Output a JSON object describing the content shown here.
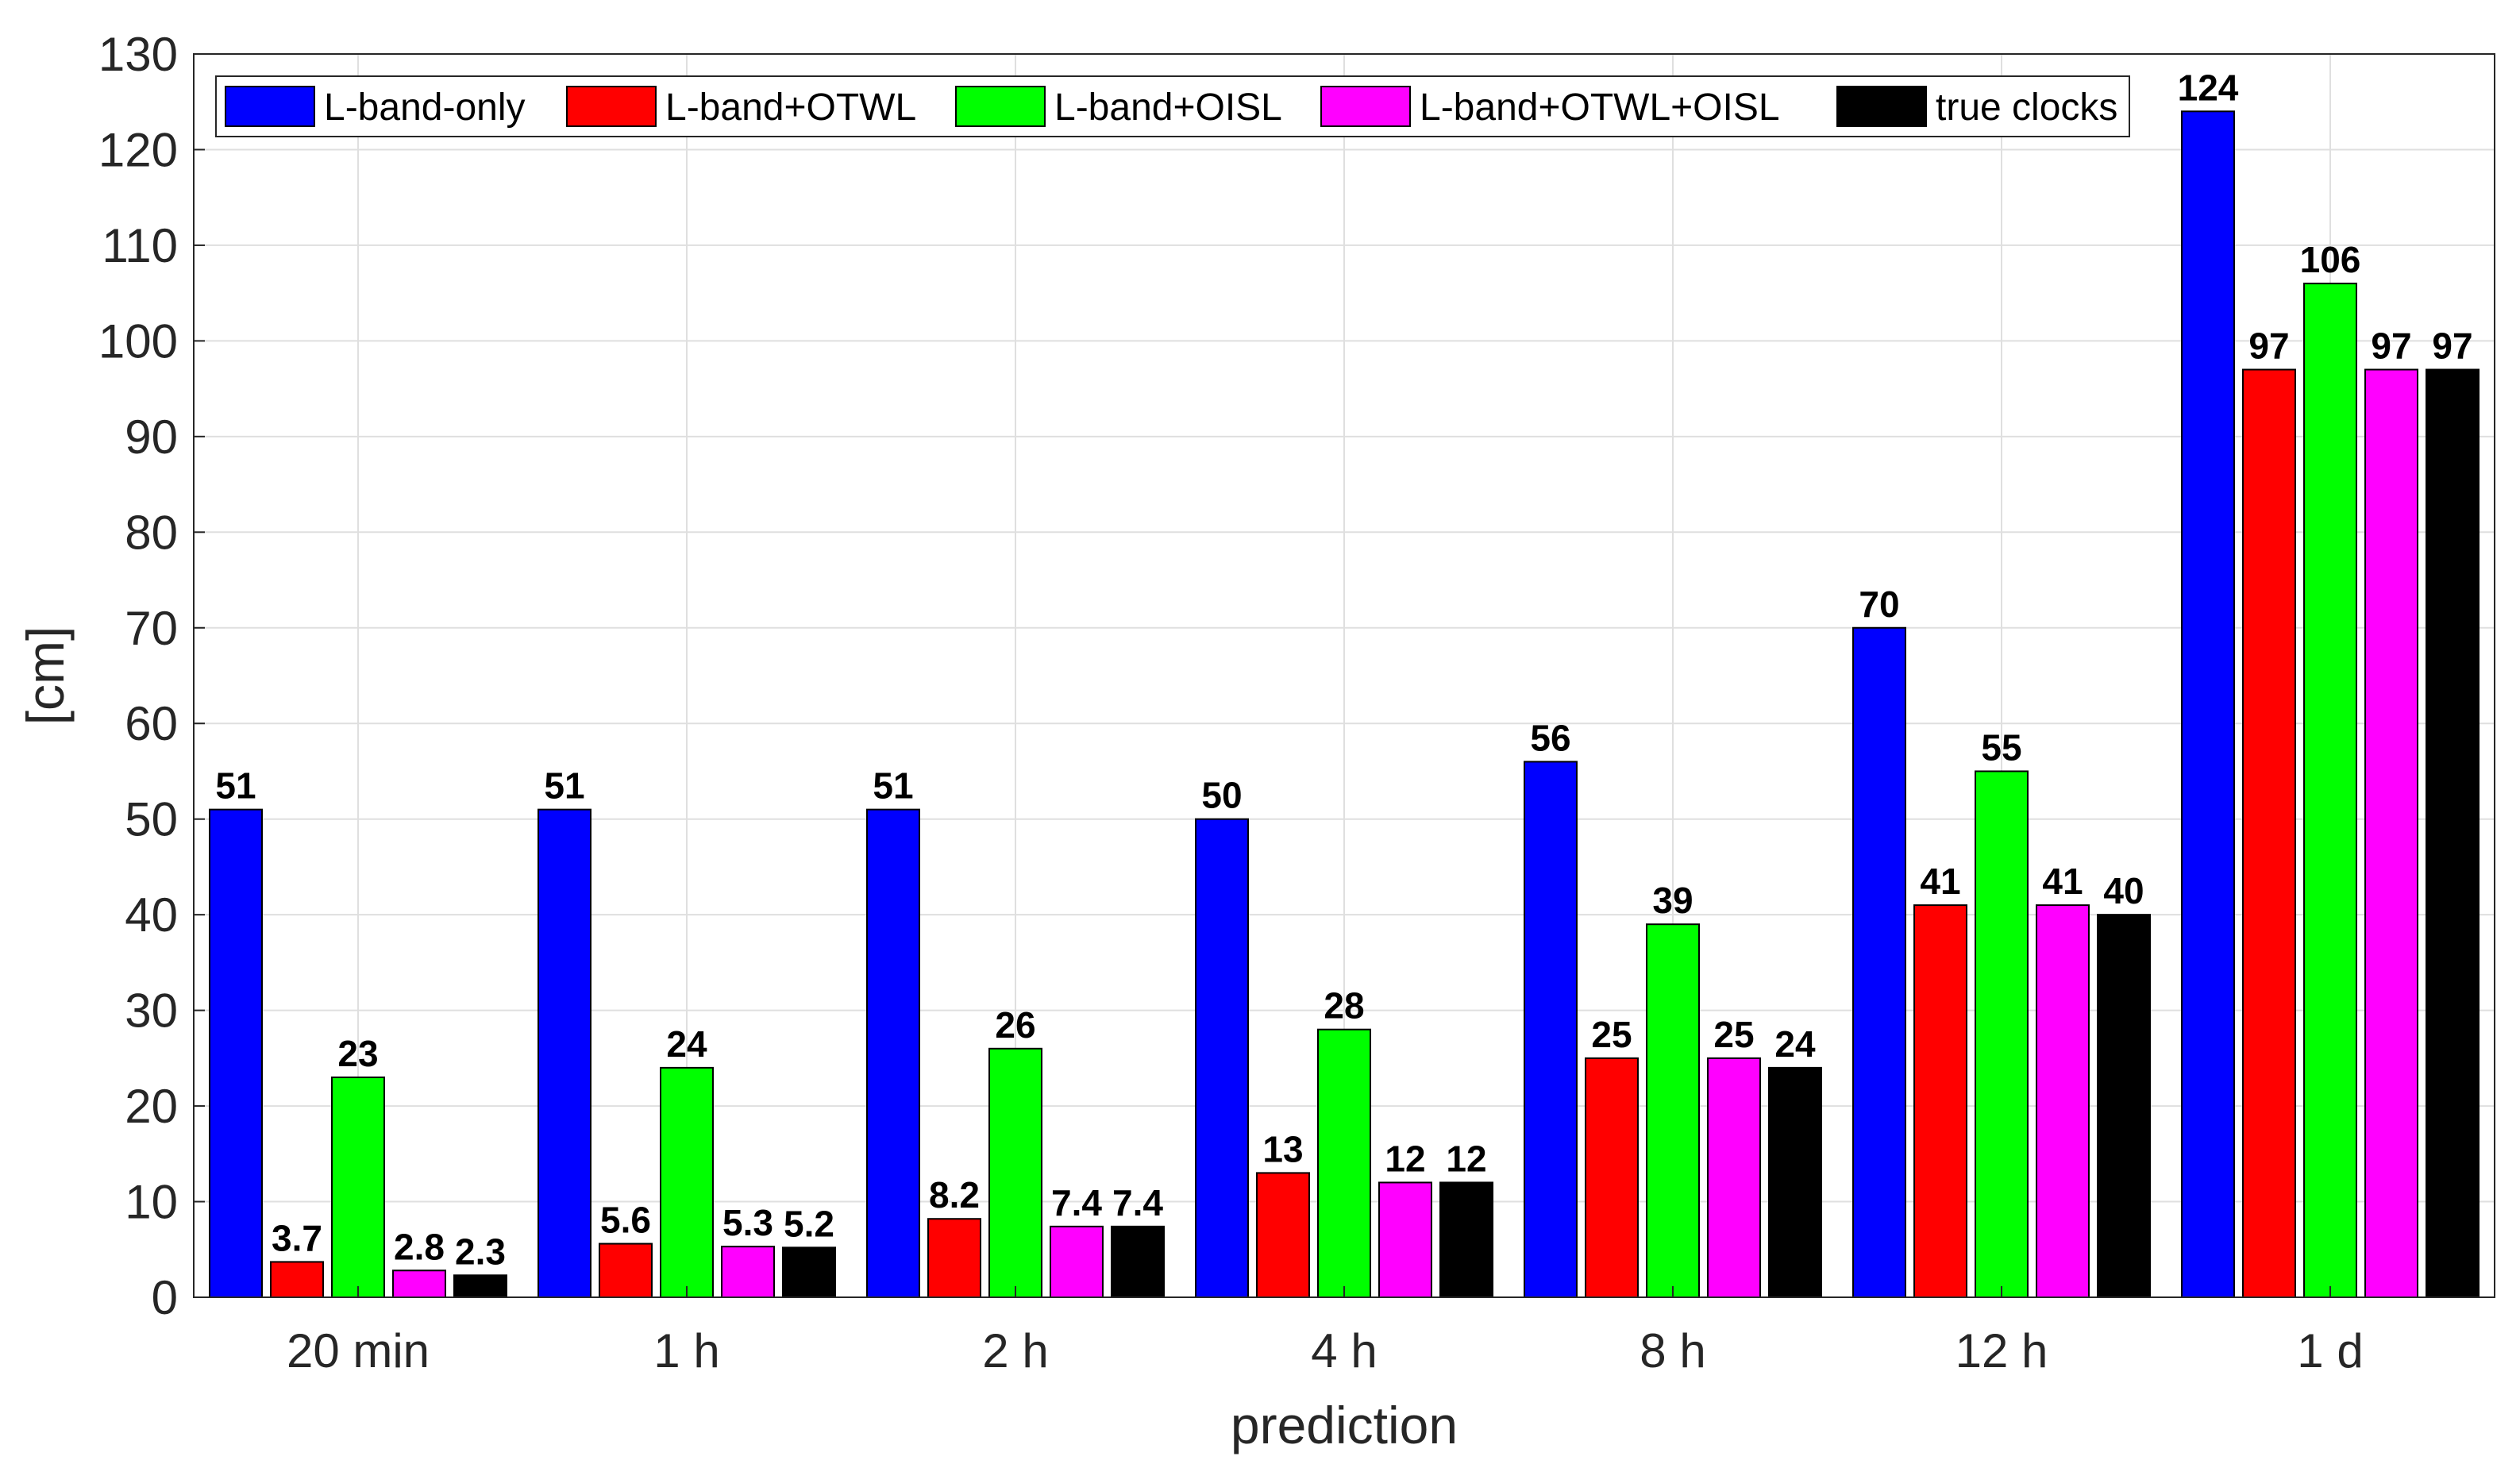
{
  "chart_data": {
    "type": "bar",
    "title": "",
    "xlabel": "prediction",
    "ylabel": "[cm]",
    "ylim": [
      0,
      130
    ],
    "yticks": [
      0,
      10,
      20,
      30,
      40,
      50,
      60,
      70,
      80,
      90,
      100,
      110,
      120,
      130
    ],
    "grid": true,
    "legend_position": "top",
    "categories": [
      "20 min",
      "1 h",
      "2 h",
      "4 h",
      "8 h",
      "12 h",
      "1 d"
    ],
    "series": [
      {
        "name": "L-band-only",
        "color": "#0000ff",
        "values": [
          51,
          51,
          51,
          50,
          56,
          70,
          124
        ],
        "labels": [
          "51",
          "51",
          "51",
          "50",
          "56",
          "70",
          "124"
        ]
      },
      {
        "name": "L-band+OTWL",
        "color": "#ff0000",
        "values": [
          3.7,
          5.6,
          8.2,
          13,
          25,
          41,
          97
        ],
        "labels": [
          "3.7",
          "5.6",
          "8.2",
          "13",
          "25",
          "41",
          "97"
        ]
      },
      {
        "name": "L-band+OISL",
        "color": "#00ff00",
        "values": [
          23,
          24,
          26,
          28,
          39,
          55,
          106
        ],
        "labels": [
          "23",
          "24",
          "26",
          "28",
          "39",
          "55",
          "106"
        ]
      },
      {
        "name": "L-band+OTWL+OISL",
        "color": "#ff00ff",
        "values": [
          2.8,
          5.3,
          7.4,
          12,
          25,
          41,
          97
        ],
        "labels": [
          "2.8",
          "5.3",
          "7.4",
          "12",
          "25",
          "41",
          "97"
        ]
      },
      {
        "name": "true clocks",
        "color": "#000000",
        "values": [
          2.3,
          5.2,
          7.4,
          12,
          24,
          40,
          97
        ],
        "labels": [
          "2.3",
          "5.2",
          "7.4",
          "12",
          "24",
          "40",
          "97"
        ]
      }
    ]
  }
}
